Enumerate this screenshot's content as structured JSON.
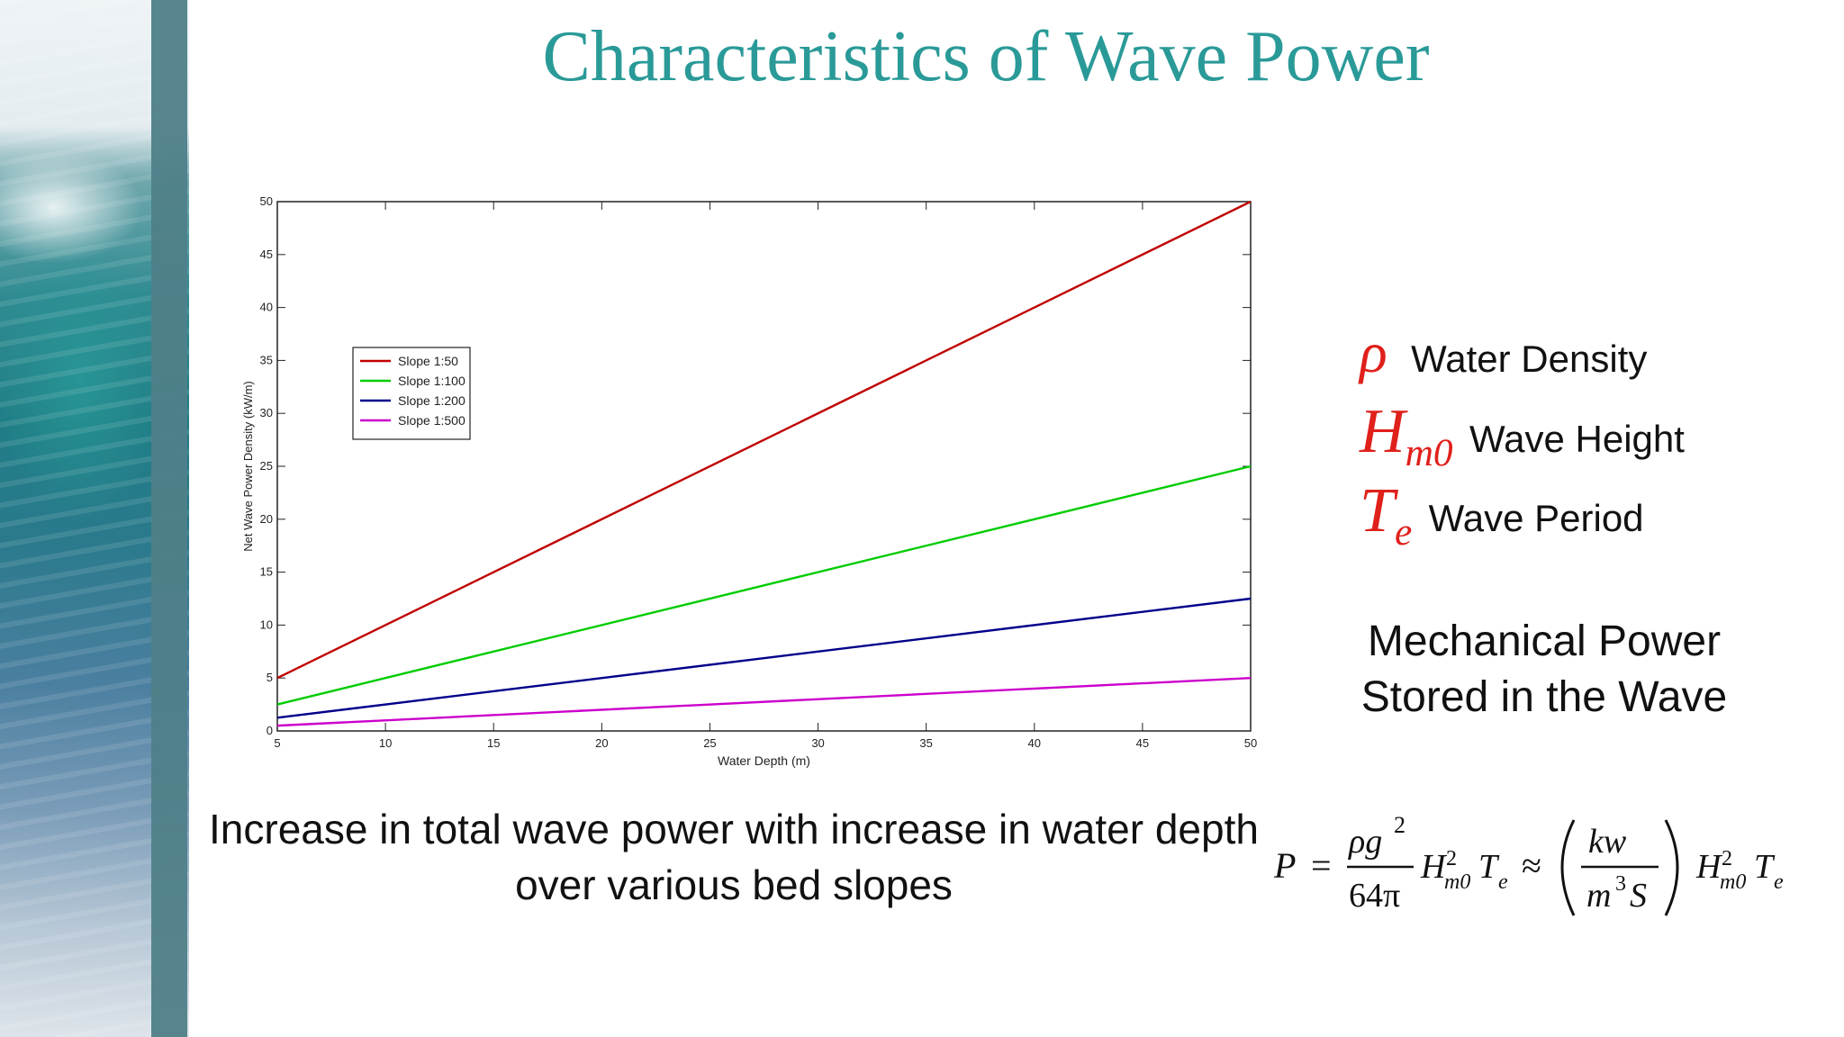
{
  "slide": {
    "title": "Characteristics of Wave Power",
    "caption": "Increase in total wave power with increase in water depth over various bed slopes",
    "accent_color": "#2a9a98",
    "symbol_color": "#e0201b"
  },
  "variables": [
    {
      "symbol": "ρ",
      "subscript": "",
      "label": "Water Density"
    },
    {
      "symbol": "H",
      "subscript": "m0",
      "label": "Wave Height"
    },
    {
      "symbol": "T",
      "subscript": "e",
      "label": "Wave Period"
    }
  ],
  "mechanical_power": {
    "line1": "Mechanical Power",
    "line2": "Stored in the Wave"
  },
  "formula": {
    "lhs": "P",
    "num": "ρg",
    "num_exp": "2",
    "den": "64π",
    "unit_num": "kw",
    "unit_den": "m",
    "unit_den_exp": "3",
    "unit_den_tail": "S",
    "height_sym": "H",
    "height_sub": "m0",
    "height_exp": "2",
    "period_sym": "T",
    "period_sub": "e",
    "eq": "=",
    "approx": "≈"
  },
  "chart_data": {
    "type": "line",
    "title": "",
    "xlabel": "Water Depth (m)",
    "ylabel": "Net Wave Power Density (kW/m)",
    "xlim": [
      5,
      50
    ],
    "ylim": [
      0,
      50
    ],
    "xticks": [
      5,
      10,
      15,
      20,
      25,
      30,
      35,
      40,
      45,
      50
    ],
    "yticks": [
      0,
      5,
      10,
      15,
      20,
      25,
      30,
      35,
      40,
      45,
      50
    ],
    "grid": false,
    "legend_position": "upper-left",
    "series": [
      {
        "name": "Slope 1:50",
        "color": "#c00000",
        "x": [
          5,
          50
        ],
        "y": [
          5,
          50
        ]
      },
      {
        "name": "Slope 1:100",
        "color": "#00cc00",
        "x": [
          5,
          50
        ],
        "y": [
          2.5,
          25
        ]
      },
      {
        "name": "Slope 1:200",
        "color": "#00008b",
        "x": [
          5,
          50
        ],
        "y": [
          1.25,
          12.5
        ]
      },
      {
        "name": "Slope 1:500",
        "color": "#cc00cc",
        "x": [
          5,
          50
        ],
        "y": [
          0.5,
          5
        ]
      }
    ]
  }
}
